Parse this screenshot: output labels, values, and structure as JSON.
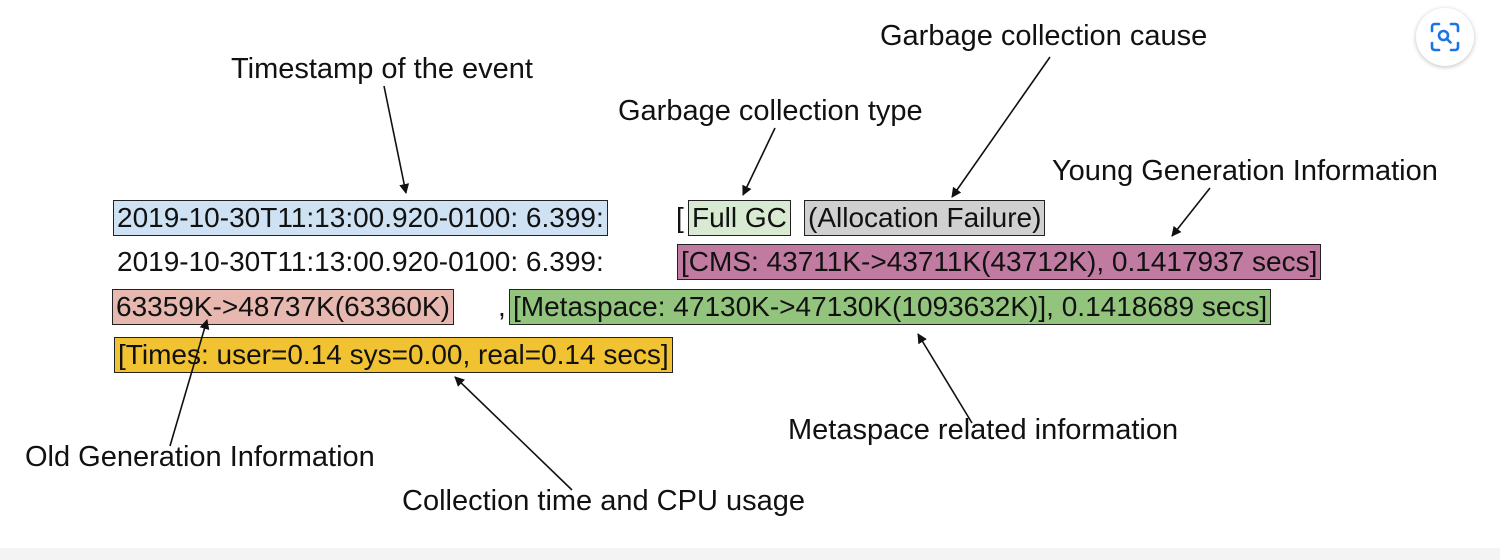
{
  "labels": {
    "timestamp": "Timestamp of the event",
    "gc_type": "Garbage collection type",
    "gc_cause": "Garbage collection cause",
    "young_gen": "Young Generation Information",
    "metaspace": "Metaspace related information",
    "old_gen": "Old Generation Information",
    "collection_time": "Collection time and CPU usage"
  },
  "log": {
    "line1_timestamp": "2019-10-30T11:13:00.920-0100: 6.399:",
    "line1_bracket": "[",
    "full_gc": "Full GC",
    "cause": "(Allocation Failure)",
    "line2_timestamp": "2019-10-30T11:13:00.920-0100: 6.399:",
    "cms": "[CMS: 43711K->43711K(43712K), 0.1417937 secs]",
    "old_gen": "63359K->48737K(63360K)",
    "comma": ",",
    "metaspace": "[Metaspace: 47130K->47130K(1093632K)], 0.1418689 secs]",
    "times": "[Times: user=0.14 sys=0.00, real=0.14 secs]"
  },
  "colors": {
    "timestamp_box": "#cfe2f3",
    "gc_type_box": "#d9ead3",
    "cause_box": "#d0d0d0",
    "cms_box": "#c27ba0",
    "old_gen_box": "#e6b8af",
    "metaspace_box": "#93c47d",
    "times_box": "#f1c232"
  },
  "icons": {
    "scan": "scan-icon"
  }
}
